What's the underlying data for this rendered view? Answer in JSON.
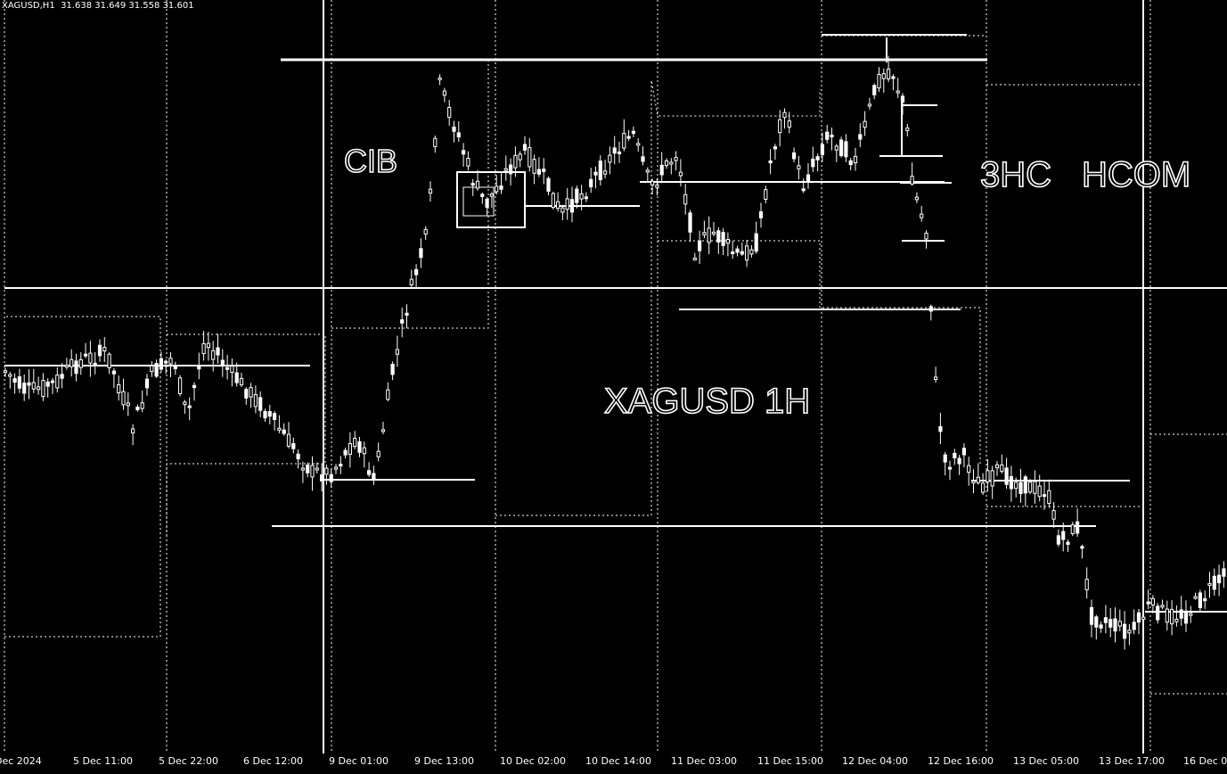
{
  "header": {
    "symbol": "XAGUSD,H1",
    "ohlc": "31.638 31.649 31.558 31.601"
  },
  "labels": {
    "left": "CIB",
    "center": "XAGUSD 1H",
    "right_a": "3HC",
    "right_b": "HCOM"
  },
  "x_axis": {
    "ticks": [
      "Dec 2024",
      "5 Dec 11:00",
      "5 Dec 22:00",
      "6 Dec 12:00",
      "9 Dec 01:00",
      "9 Dec 13:00",
      "10 Dec 02:00",
      "10 Dec 14:00",
      "11 Dec 03:00",
      "11 Dec 15:00",
      "12 Dec 04:00",
      "12 Dec 16:00",
      "13 Dec 05:00",
      "13 Dec 17:00",
      "16 Dec 0"
    ]
  },
  "colors": {
    "background": "#000000",
    "foreground": "#ffffff"
  },
  "chart_data": {
    "type": "candlestick",
    "symbol": "XAGUSD",
    "timeframe": "H1",
    "last_bar": {
      "open": 31.638,
      "high": 31.649,
      "low": 31.558,
      "close": 31.601
    },
    "grid": "vertical dotted session separators",
    "legend": "none"
  }
}
